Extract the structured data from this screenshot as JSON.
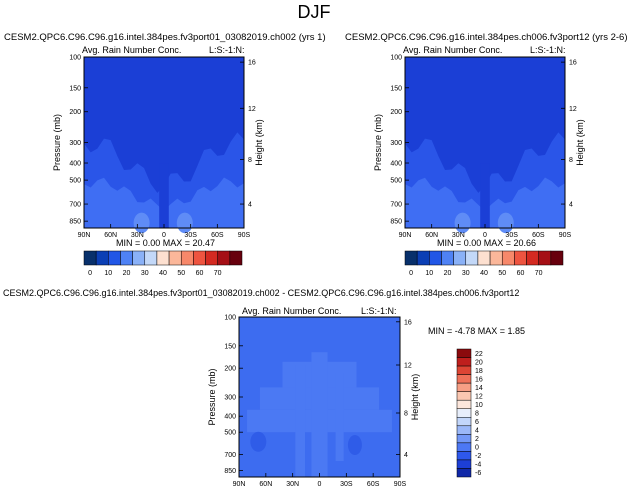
{
  "page_title": "DJF",
  "colors": {
    "background_blue": "#1b3fd6",
    "diff_blue": "#3d6cf0",
    "colorbar_top": [
      "#08306b",
      "#0b3fb5",
      "#2156e6",
      "#4f82f5",
      "#8ab1f7",
      "#c3d8f8",
      "#fde0d0",
      "#fbb79a",
      "#f7886a",
      "#ee5440",
      "#d42a21",
      "#a50f15",
      "#67000d"
    ],
    "colorbar_diff": [
      "#1028a8",
      "#1d3fd6",
      "#2e58ec",
      "#4d78f4",
      "#7398f7",
      "#9bb8f8",
      "#c2d6fa",
      "#e7eefb",
      "#fde7dc",
      "#fbc7b1",
      "#f79f85",
      "#ef7159",
      "#dd4534",
      "#bf1f1d",
      "#8b0a0d"
    ]
  },
  "panels": [
    {
      "title": "CESM2.QPC6.C96.C96.g16.intel.384pes.fv3port01_03082019.ch002 (yrs 1)",
      "field": "Avg. Rain Number Conc.",
      "label_right": "L:S:-1:N:",
      "min_max": "MIN =   0.00  MAX = 20.47"
    },
    {
      "title": "CESM2.QPC6.C96.C96.g16.intel.384pes.ch006.fv3port12 (yrs 2-6)",
      "field": "Avg. Rain Number Conc.",
      "label_right": "L:S:-1:N:",
      "min_max": "MIN =   0.00  MAX = 20.66"
    },
    {
      "title": "CESM2.QPC6.C96.C96.g16.intel.384pes.fv3port01_03082019.ch002 - CESM2.QPC6.C96.C96.g16.intel.384pes.ch006.fv3port12",
      "field": "Avg. Rain Number Conc.",
      "label_right": "L:S:-1:N:",
      "min_max": "MIN =  -4.78  MAX =   1.85"
    }
  ],
  "axes": {
    "ylabel": "Pressure (mb)",
    "ylabel_right": "Height (km)",
    "pressure_ticks": [
      "100",
      "150",
      "200",
      "300",
      "400",
      "500",
      "700",
      "850"
    ],
    "height_ticks": [
      "16",
      "12",
      "8",
      "4"
    ],
    "lat_ticks": [
      "90N",
      "60N",
      "30N",
      "0",
      "30S",
      "60S",
      "90S"
    ]
  },
  "colorbar_top_labels": [
    "0",
    "10",
    "20",
    "30",
    "40",
    "50",
    "60",
    "70"
  ],
  "colorbar_diff_labels": [
    "22",
    "20",
    "18",
    "16",
    "14",
    "12",
    "10",
    "8",
    "6",
    "4",
    "2",
    "0",
    "-2",
    "-4",
    "-6"
  ],
  "chart_data": [
    {
      "type": "heatmap",
      "title": "Avg. Rain Number Conc.",
      "ylabel": "Pressure (mb)",
      "xlabel": "",
      "x_ticks": [
        "90N",
        "60N",
        "30N",
        "0",
        "30S",
        "60S",
        "90S"
      ],
      "y_ticks": [
        100,
        150,
        200,
        300,
        400,
        500,
        700,
        850
      ],
      "min": 0.0,
      "max": 20.47,
      "levels": [
        0,
        10,
        20,
        30,
        40,
        50,
        60,
        70
      ]
    },
    {
      "type": "heatmap",
      "title": "Avg. Rain Number Conc.",
      "ylabel": "Pressure (mb)",
      "xlabel": "",
      "x_ticks": [
        "90N",
        "60N",
        "30N",
        "0",
        "30S",
        "60S",
        "90S"
      ],
      "y_ticks": [
        100,
        150,
        200,
        300,
        400,
        500,
        700,
        850
      ],
      "min": 0.0,
      "max": 20.66,
      "levels": [
        0,
        10,
        20,
        30,
        40,
        50,
        60,
        70
      ]
    },
    {
      "type": "heatmap",
      "title": "Avg. Rain Number Conc.",
      "ylabel": "Pressure (mb)",
      "xlabel": "",
      "x_ticks": [
        "90N",
        "60N",
        "30N",
        "0",
        "30S",
        "60S",
        "90S"
      ],
      "y_ticks": [
        100,
        150,
        200,
        300,
        400,
        500,
        700,
        850
      ],
      "min": -4.78,
      "max": 1.85,
      "levels": [
        22,
        20,
        18,
        16,
        14,
        12,
        10,
        8,
        6,
        4,
        2,
        0,
        -2,
        -4,
        -6
      ]
    }
  ]
}
